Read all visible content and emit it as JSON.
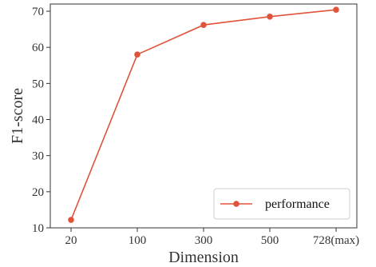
{
  "chart_data": {
    "type": "line",
    "categories": [
      "20",
      "100",
      "300",
      "500",
      "728(max)"
    ],
    "series": [
      {
        "name": "performance",
        "values": [
          12.2,
          58.0,
          66.2,
          68.5,
          70.4
        ],
        "color": "#e0533a"
      }
    ],
    "xlabel": "Dimension",
    "ylabel": "F1-score",
    "ylim": [
      10,
      72
    ],
    "yticks": [
      10,
      20,
      30,
      40,
      50,
      60,
      70
    ],
    "grid": false,
    "legend_position": "bottom-right"
  }
}
